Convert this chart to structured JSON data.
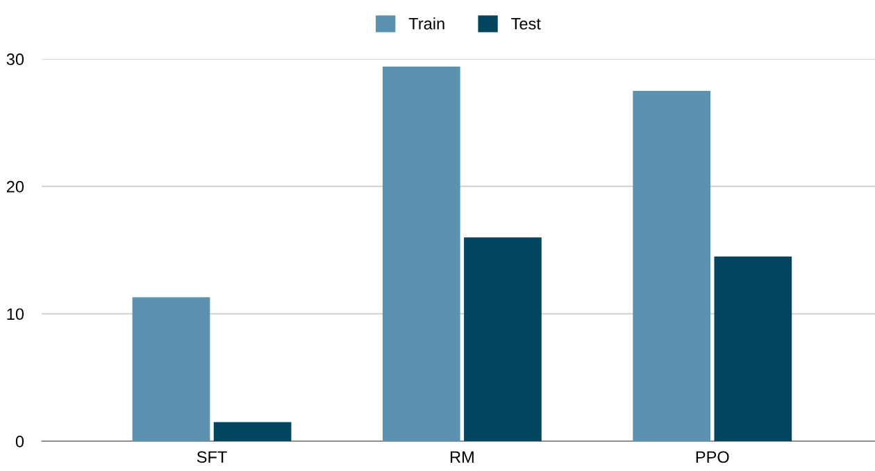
{
  "chart_data": {
    "type": "bar",
    "categories": [
      "SFT",
      "RM",
      "PPO"
    ],
    "series": [
      {
        "name": "Train",
        "color": "#5a92b0",
        "values": [
          11.3,
          29.4,
          27.5
        ]
      },
      {
        "name": "Test",
        "color": "#03445e",
        "values": [
          1.5,
          16.0,
          14.5
        ]
      }
    ],
    "ylim": [
      0,
      30
    ],
    "yticks": [
      0,
      10,
      20,
      30
    ],
    "grid": "y",
    "legend": "top"
  }
}
